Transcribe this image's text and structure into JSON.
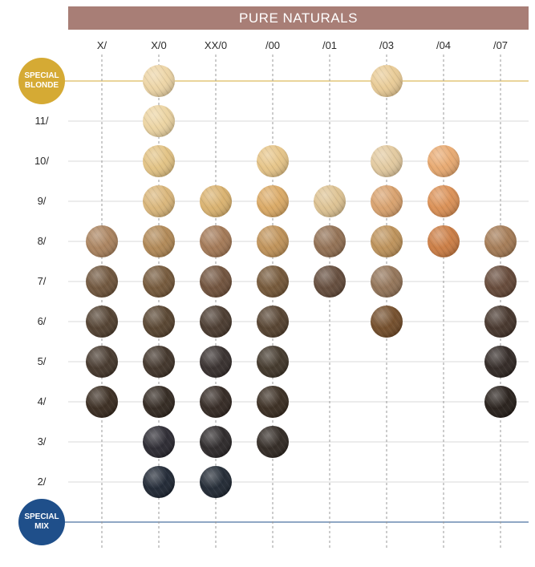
{
  "title": "PURE NATURALS",
  "colors": {
    "banner": "#a87e76",
    "special_blonde": "#d5aa34",
    "special_mix": "#1f4f8a",
    "grid": "#d9d9d9"
  },
  "columns": [
    "X/",
    "X/0",
    "XX/0",
    "/00",
    "/01",
    "/03",
    "/04",
    "/07"
  ],
  "rows": [
    {
      "label": "SPECIAL BLONDE",
      "kind": "special",
      "line1": "SPECIAL",
      "line2": "BLONDE",
      "color_key": "special_blonde"
    },
    {
      "label": "11/",
      "kind": "level"
    },
    {
      "label": "10/",
      "kind": "level"
    },
    {
      "label": "9/",
      "kind": "level"
    },
    {
      "label": "8/",
      "kind": "level"
    },
    {
      "label": "7/",
      "kind": "level"
    },
    {
      "label": "6/",
      "kind": "level"
    },
    {
      "label": "5/",
      "kind": "level"
    },
    {
      "label": "4/",
      "kind": "level"
    },
    {
      "label": "3/",
      "kind": "level"
    },
    {
      "label": "2/",
      "kind": "level"
    },
    {
      "label": "SPECIAL MIX",
      "kind": "special",
      "line1": "SPECIAL",
      "line2": "MIX",
      "color_key": "special_mix"
    }
  ],
  "swatches": [
    {
      "row": "SPECIAL BLONDE",
      "col": "X/0",
      "color": "#ecd3a2"
    },
    {
      "row": "SPECIAL BLONDE",
      "col": "/03",
      "color": "#e8c992"
    },
    {
      "row": "11/",
      "col": "X/0",
      "color": "#ebd29e"
    },
    {
      "row": "10/",
      "col": "X/0",
      "color": "#e1c07f"
    },
    {
      "row": "10/",
      "col": "/00",
      "color": "#e5c283"
    },
    {
      "row": "10/",
      "col": "/03",
      "color": "#e1c79b"
    },
    {
      "row": "10/",
      "col": "/04",
      "color": "#e7a66b"
    },
    {
      "row": "9/",
      "col": "X/0",
      "color": "#d8b375"
    },
    {
      "row": "9/",
      "col": "XX/0",
      "color": "#d8af6a"
    },
    {
      "row": "9/",
      "col": "/00",
      "color": "#d9a65f"
    },
    {
      "row": "9/",
      "col": "/01",
      "color": "#dcc08e"
    },
    {
      "row": "9/",
      "col": "/03",
      "color": "#d79e68"
    },
    {
      "row": "9/",
      "col": "/04",
      "color": "#d98c4f"
    },
    {
      "row": "8/",
      "col": "X/",
      "color": "#a77e58"
    },
    {
      "row": "8/",
      "col": "X/0",
      "color": "#ae8450"
    },
    {
      "row": "8/",
      "col": "XX/0",
      "color": "#a07450"
    },
    {
      "row": "8/",
      "col": "/00",
      "color": "#bd8e52"
    },
    {
      "row": "8/",
      "col": "/01",
      "color": "#8e6b4d"
    },
    {
      "row": "8/",
      "col": "/03",
      "color": "#bb8e54"
    },
    {
      "row": "8/",
      "col": "/04",
      "color": "#c9783d"
    },
    {
      "row": "8/",
      "col": "/07",
      "color": "#a1764f"
    },
    {
      "row": "7/",
      "col": "X/",
      "color": "#6a4f35"
    },
    {
      "row": "7/",
      "col": "X/0",
      "color": "#6f5233"
    },
    {
      "row": "7/",
      "col": "XX/0",
      "color": "#6b4c35"
    },
    {
      "row": "7/",
      "col": "/00",
      "color": "#6f5131"
    },
    {
      "row": "7/",
      "col": "/01",
      "color": "#5e4534"
    },
    {
      "row": "7/",
      "col": "/03",
      "color": "#8f6f52"
    },
    {
      "row": "7/",
      "col": "/07",
      "color": "#5f4231"
    },
    {
      "row": "6/",
      "col": "X/",
      "color": "#4c3a29"
    },
    {
      "row": "6/",
      "col": "X/0",
      "color": "#513d28"
    },
    {
      "row": "6/",
      "col": "XX/0",
      "color": "#443428"
    },
    {
      "row": "6/",
      "col": "/00",
      "color": "#4f3b28"
    },
    {
      "row": "6/",
      "col": "/03",
      "color": "#6e4723"
    },
    {
      "row": "6/",
      "col": "/07",
      "color": "#3f2e24"
    },
    {
      "row": "5/",
      "col": "X/",
      "color": "#3f3125"
    },
    {
      "row": "5/",
      "col": "X/0",
      "color": "#3a2d22"
    },
    {
      "row": "5/",
      "col": "XX/0",
      "color": "#302826"
    },
    {
      "row": "5/",
      "col": "/00",
      "color": "#3b3023"
    },
    {
      "row": "5/",
      "col": "/07",
      "color": "#2a211d"
    },
    {
      "row": "4/",
      "col": "X/",
      "color": "#332519"
    },
    {
      "row": "4/",
      "col": "X/0",
      "color": "#2b2119"
    },
    {
      "row": "4/",
      "col": "XX/0",
      "color": "#2d221c"
    },
    {
      "row": "4/",
      "col": "/00",
      "color": "#33261a"
    },
    {
      "row": "4/",
      "col": "/07",
      "color": "#201813"
    },
    {
      "row": "3/",
      "col": "X/0",
      "color": "#24222a"
    },
    {
      "row": "3/",
      "col": "XX/0",
      "color": "#262223"
    },
    {
      "row": "3/",
      "col": "/00",
      "color": "#2a221c"
    },
    {
      "row": "2/",
      "col": "X/0",
      "color": "#18202d"
    },
    {
      "row": "2/",
      "col": "XX/0",
      "color": "#1a222d"
    }
  ]
}
